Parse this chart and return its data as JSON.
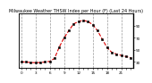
{
  "title": "Milwaukee Weather THSW Index per Hour (F) (Last 24 Hours)",
  "hours": [
    0,
    1,
    2,
    3,
    4,
    5,
    6,
    7,
    8,
    9,
    10,
    11,
    12,
    13,
    14,
    15,
    16,
    17,
    18,
    19,
    20,
    21,
    22,
    23
  ],
  "values": [
    30,
    30,
    29,
    29,
    29,
    30,
    31,
    36,
    55,
    70,
    82,
    93,
    97,
    99,
    97,
    92,
    82,
    68,
    54,
    46,
    43,
    41,
    39,
    37
  ],
  "line_color": "#dd0000",
  "marker_color": "#000000",
  "marker_style": "s",
  "marker_size": 1.5,
  "line_width": 0.8,
  "line_style": "--",
  "bg_color": "#ffffff",
  "grid_color": "#999999",
  "grid_style": "--",
  "ylim": [
    20,
    110
  ],
  "yticks": [
    30,
    50,
    70,
    90
  ],
  "title_fontsize": 3.5,
  "tick_label_size": 3.0,
  "xlim": [
    -0.5,
    23.5
  ],
  "grid_x_positions": [
    0,
    3,
    6,
    9,
    12,
    15,
    18,
    21
  ]
}
